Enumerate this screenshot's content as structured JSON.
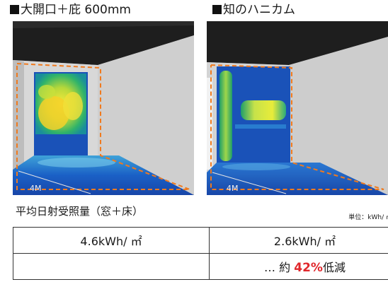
{
  "figure": {
    "left_caption": "大開口＋庇 600mm",
    "right_caption": "知のハニカム",
    "left_scale_label": "4M",
    "right_scale_label": "4M"
  },
  "measurement": {
    "title": "平均日射受照量（窓＋床）",
    "unit_label": "単位：kWh/ ㎡"
  },
  "results": {
    "left_value": "4.6kWh/ ㎡",
    "right_value": "2.6kWh/ ㎡",
    "reduction_prefix": "… 約 ",
    "reduction_percent": "42%",
    "reduction_suffix": "低減"
  },
  "colors": {
    "heat_blue": "#1a52b8",
    "heat_orange": "#f07a1e",
    "reduction_red": "#e0272c"
  }
}
